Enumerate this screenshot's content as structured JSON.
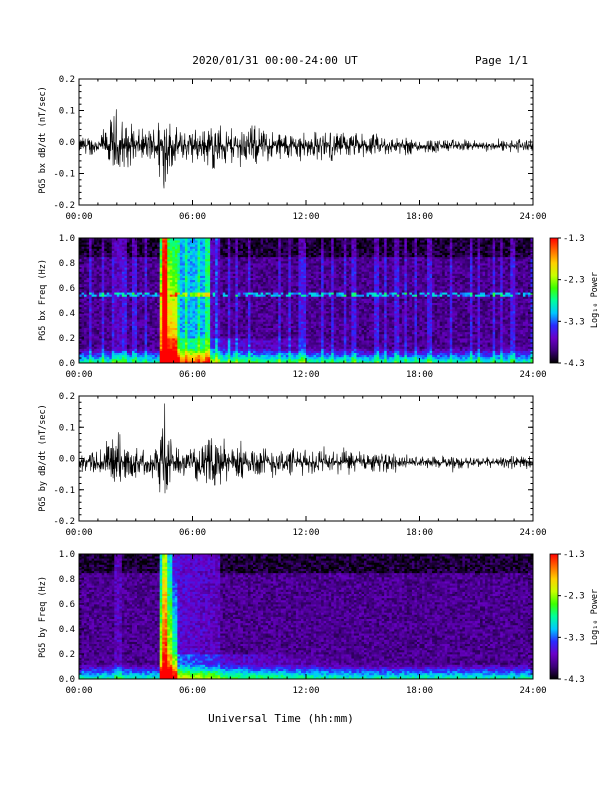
{
  "header": {
    "date_range": "2020/01/31  00:00-24:00 UT",
    "page": "Page 1/1"
  },
  "footer": {
    "xlabel": "Universal Time (hh:mm)"
  },
  "colors": {
    "background": "#ffffff",
    "trace": "#000000",
    "spectro_bg": "#1a0033",
    "colormap": [
      "#000000",
      "#3d007a",
      "#6a00c8",
      "#2a2aff",
      "#00c8ff",
      "#00ff9c",
      "#3cff00",
      "#c8ff00",
      "#ffd000",
      "#ff6a00",
      "#ff0000"
    ]
  },
  "chart_data": [
    {
      "type": "line",
      "panel": "bx-timeseries",
      "ylabel": "PG5 bx dB/dt (nT/sec)",
      "xlim": [
        "00:00",
        "24:00"
      ],
      "ylim": [
        -0.2,
        0.2
      ],
      "xticks": [
        "00:00",
        "06:00",
        "12:00",
        "18:00",
        "24:00"
      ],
      "yticks": [
        "-0.2",
        "-0.1",
        "0.0",
        "0.1",
        "0.2"
      ],
      "envelope": {
        "x_hours": [
          0,
          0.5,
          1,
          1.5,
          2,
          2.5,
          3,
          3.5,
          4,
          4.3,
          4.5,
          4.7,
          5,
          5.5,
          6,
          6.5,
          7,
          7.5,
          8,
          9,
          10,
          11,
          12,
          13,
          14,
          15,
          16,
          18,
          20,
          22,
          23.5,
          24
        ],
        "amplitude": [
          0.03,
          0.035,
          0.04,
          0.06,
          0.12,
          0.07,
          0.05,
          0.05,
          0.07,
          0.12,
          0.21,
          0.1,
          0.06,
          0.05,
          0.06,
          0.05,
          0.08,
          0.07,
          0.06,
          0.07,
          0.05,
          0.05,
          0.045,
          0.05,
          0.045,
          0.04,
          0.035,
          0.025,
          0.02,
          0.015,
          0.025,
          0.015
        ]
      }
    },
    {
      "type": "heatmap",
      "panel": "bx-spectrogram",
      "ylabel": "PG5 bx Freq (Hz)",
      "colorbar_label": "Log₁₀ Power",
      "xlim": [
        "00:00",
        "24:00"
      ],
      "ylim": [
        0.0,
        1.0
      ],
      "clim": [
        -4.3,
        -1.3
      ],
      "xticks": [
        "00:00",
        "06:00",
        "12:00",
        "18:00",
        "24:00"
      ],
      "yticks": [
        "0.0",
        "0.2",
        "0.4",
        "0.6",
        "0.8",
        "1.0"
      ],
      "cticks": [
        "-1.3",
        "-2.3",
        "-3.3",
        "-4.3"
      ]
    },
    {
      "type": "line",
      "panel": "by-timeseries",
      "ylabel": "PG5 by dB/dt (nT/sec)",
      "xlim": [
        "00:00",
        "24:00"
      ],
      "ylim": [
        -0.2,
        0.2
      ],
      "xticks": [
        "00:00",
        "06:00",
        "12:00",
        "18:00",
        "24:00"
      ],
      "yticks": [
        "-0.2",
        "-0.1",
        "0.0",
        "0.1",
        "0.2"
      ],
      "envelope": {
        "x_hours": [
          0,
          0.5,
          1,
          1.5,
          2,
          2.5,
          3,
          3.5,
          4,
          4.3,
          4.5,
          4.7,
          5,
          5.5,
          6,
          6.5,
          7,
          7.5,
          8,
          9,
          10,
          11,
          12,
          13,
          14,
          15,
          16,
          18,
          20,
          22,
          23.5,
          24
        ],
        "amplitude": [
          0.03,
          0.035,
          0.045,
          0.07,
          0.11,
          0.06,
          0.05,
          0.04,
          0.06,
          0.13,
          0.21,
          0.1,
          0.05,
          0.04,
          0.05,
          0.06,
          0.08,
          0.08,
          0.06,
          0.06,
          0.05,
          0.05,
          0.04,
          0.045,
          0.04,
          0.035,
          0.03,
          0.02,
          0.02,
          0.015,
          0.025,
          0.015
        ]
      }
    },
    {
      "type": "heatmap",
      "panel": "by-spectrogram",
      "ylabel": "PG5 by Freq (Hz)",
      "colorbar_label": "Log₁₀ Power",
      "xlim": [
        "00:00",
        "24:00"
      ],
      "ylim": [
        0.0,
        1.0
      ],
      "clim": [
        -4.3,
        -1.3
      ],
      "xticks": [
        "00:00",
        "06:00",
        "12:00",
        "18:00",
        "24:00"
      ],
      "yticks": [
        "0.0",
        "0.2",
        "0.4",
        "0.6",
        "0.8",
        "1.0"
      ],
      "cticks": [
        "-1.3",
        "-2.3",
        "-3.3",
        "-4.3"
      ]
    }
  ]
}
